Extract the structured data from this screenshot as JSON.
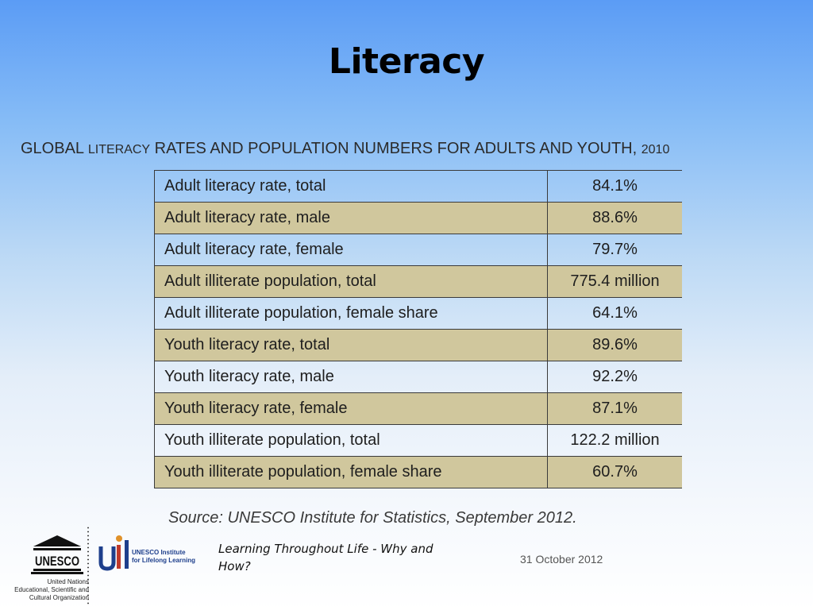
{
  "slide": {
    "title": "Literacy",
    "subtitle_global": "GLOBAL",
    "subtitle_literacy": "LITERACY",
    "subtitle_rest": "RATES AND POPULATION NUMBERS FOR ADULTS AND YOUTH, ",
    "subtitle_year": "2010"
  },
  "table": {
    "rows": [
      {
        "label": "Adult literacy rate, total",
        "value": "84.1%"
      },
      {
        "label": "Adult literacy rate, male",
        "value": "88.6%"
      },
      {
        "label": "Adult literacy rate, female",
        "value": "79.7%"
      },
      {
        "label": "Adult illiterate population, total",
        "value": "775.4 million"
      },
      {
        "label": "Adult illiterate population, female share",
        "value": "64.1%"
      },
      {
        "label": "Youth literacy rate, total",
        "value": "89.6%"
      },
      {
        "label": "Youth literacy rate, male",
        "value": "92.2%"
      },
      {
        "label": "Youth literacy rate, female",
        "value": "87.1%"
      },
      {
        "label": "Youth illiterate population, total",
        "value": "122.2 million"
      },
      {
        "label": "Youth illiterate population, female share",
        "value": "60.7%"
      }
    ],
    "alt_row_color": "#d0c79d"
  },
  "source": "Source: UNESCO Institute for Statistics, September 2012.",
  "footer": {
    "text": "Learning Throughout Life - Why and How?",
    "date": "31 October 2012",
    "unesco_wordmark": "UNESCO",
    "unesco_line1": "United Nations",
    "unesco_line2": "Educational, Scientific and",
    "unesco_line3": "Cultural Organization",
    "uil_line1": "UNESCO Institute",
    "uil_line2": "for Lifelong Learning"
  }
}
